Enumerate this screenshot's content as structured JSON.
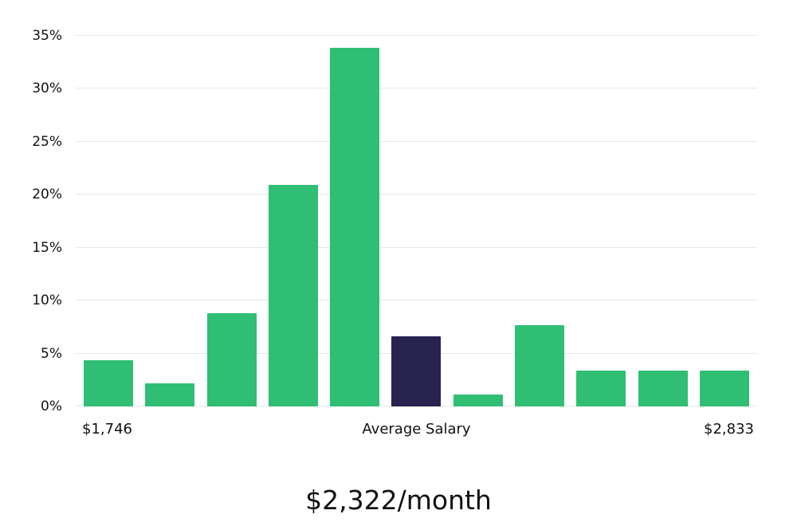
{
  "chart_data": {
    "type": "bar",
    "title": "$2,322/month",
    "values": [
      4.4,
      2.2,
      8.8,
      20.9,
      33.9,
      6.6,
      1.1,
      7.7,
      3.4,
      3.4,
      3.4
    ],
    "highlight_index": 5,
    "bar_color": "#2fbe74",
    "highlight_color": "#28234f",
    "ylim": [
      0,
      35
    ],
    "yticks": [
      0,
      5,
      10,
      15,
      20,
      25,
      30,
      35
    ],
    "ytick_suffix": "%",
    "grid": true,
    "gridline_color": "#e6e6e6",
    "legend": "none",
    "xlabel_left": "$1,746",
    "xlabel_center": "Average Salary",
    "xlabel_right": "$2,833"
  }
}
